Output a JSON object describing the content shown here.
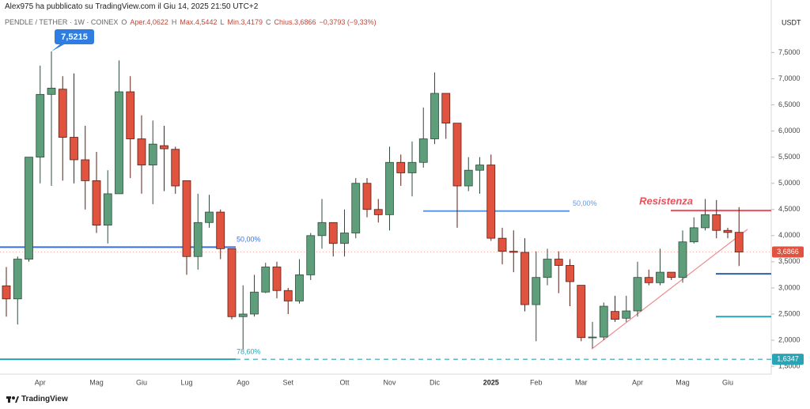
{
  "header": {
    "publisher": "Alex975 ha pubblicato su TradingView.com il Giu 14, 2025 21:50 UTC+2",
    "symbol": "PENDLE / TETHER · 1W · COINEX",
    "ohlc": [
      "O",
      "Aper.4,0622",
      "H",
      "Max.4,5442",
      "L",
      "Min.3,4179",
      "C",
      "Chius.3,6866",
      "−0,3793 (−9,33%)"
    ]
  },
  "logo": "TradingView",
  "chart_data": {
    "type": "candlestick",
    "y_axis_label": "USDT",
    "categories": [
      null,
      null,
      null,
      "Apr",
      null,
      null,
      null,
      null,
      "Mag",
      null,
      null,
      null,
      "Giu",
      null,
      null,
      null,
      "Lug",
      null,
      null,
      null,
      null,
      "Ago",
      null,
      null,
      null,
      "Set",
      null,
      null,
      null,
      null,
      "Ott",
      null,
      null,
      null,
      "Nov",
      null,
      null,
      null,
      "Dic",
      null,
      null,
      null,
      null,
      "2025",
      null,
      null,
      null,
      "Feb",
      null,
      null,
      null,
      "Mar",
      null,
      null,
      null,
      null,
      "Apr",
      null,
      null,
      null,
      "Mag",
      null,
      null,
      null,
      "Giu",
      null
    ],
    "open": [
      3.04,
      2.79,
      3.55,
      5.5,
      6.7,
      6.8,
      5.88,
      5.45,
      5.05,
      4.2,
      4.8,
      6.75,
      5.85,
      5.35,
      5.72,
      5.65,
      5.05,
      3.6,
      4.25,
      4.45,
      3.75,
      2.45,
      2.5,
      2.92,
      3.4,
      2.95,
      2.75,
      3.25,
      4.0,
      4.25,
      3.85,
      4.05,
      5.0,
      4.5,
      4.4,
      5.4,
      5.2,
      5.4,
      5.85,
      6.72,
      6.15,
      4.95,
      5.25,
      5.35,
      3.95,
      3.7,
      3.68,
      2.68,
      3.2,
      3.55,
      3.43,
      3.05,
      2.05,
      2.06,
      2.55,
      2.42,
      2.56,
      3.2,
      3.1,
      3.3,
      3.2,
      3.88,
      4.15,
      4.4,
      4.1,
      4.0622
    ],
    "high": [
      3.4,
      3.6,
      5.5,
      7.25,
      7.5215,
      7.05,
      7.1,
      6.1,
      5.6,
      5.25,
      7.35,
      7.05,
      6.3,
      6.2,
      6.1,
      5.7,
      5.05,
      4.8,
      4.78,
      4.5,
      3.75,
      3.05,
      3.25,
      3.48,
      3.5,
      3.0,
      3.55,
      4.05,
      4.7,
      4.25,
      4.5,
      5.1,
      5.1,
      4.7,
      5.7,
      5.55,
      5.8,
      6.45,
      7.12,
      6.72,
      6.15,
      5.5,
      5.5,
      5.55,
      4.15,
      4.1,
      3.95,
      3.7,
      3.75,
      3.7,
      3.55,
      3.05,
      2.35,
      2.72,
      2.85,
      2.85,
      3.5,
      3.35,
      3.75,
      3.3,
      4.1,
      4.35,
      4.7,
      4.68,
      4.15,
      4.5442
    ],
    "low": [
      2.45,
      2.3,
      3.5,
      5.0,
      4.95,
      5.05,
      5.0,
      4.5,
      4.05,
      3.85,
      4.8,
      5.1,
      4.8,
      4.6,
      4.85,
      4.8,
      3.25,
      3.35,
      4.15,
      3.55,
      2.4,
      1.83,
      2.45,
      2.9,
      2.8,
      2.5,
      2.7,
      3.15,
      3.75,
      3.6,
      3.6,
      3.95,
      4.35,
      4.25,
      4.1,
      4.95,
      4.75,
      5.3,
      5.75,
      5.85,
      4.15,
      4.85,
      4.8,
      3.9,
      3.45,
      3.3,
      2.55,
      1.98,
      3.05,
      2.9,
      2.65,
      1.98,
      1.85,
      2.0,
      2.35,
      2.35,
      2.45,
      3.05,
      3.05,
      3.15,
      3.1,
      3.85,
      4.1,
      3.95,
      3.95,
      3.4179
    ],
    "close": [
      2.79,
      3.55,
      5.5,
      6.7,
      6.82,
      5.88,
      5.45,
      5.05,
      4.2,
      4.8,
      6.75,
      5.85,
      5.35,
      5.75,
      5.66,
      4.95,
      3.6,
      4.25,
      4.45,
      3.75,
      2.45,
      2.5,
      2.92,
      3.4,
      2.95,
      2.75,
      3.25,
      4.0,
      4.25,
      3.85,
      4.05,
      5.0,
      4.5,
      4.4,
      5.4,
      5.2,
      5.4,
      5.85,
      6.72,
      6.15,
      4.95,
      5.25,
      5.35,
      3.95,
      3.7,
      3.68,
      2.68,
      3.2,
      3.55,
      3.43,
      3.12,
      2.05,
      2.06,
      2.65,
      2.4,
      2.56,
      3.2,
      3.1,
      3.3,
      3.2,
      3.88,
      4.15,
      4.4,
      4.1,
      4.06,
      3.6866
    ],
    "up_color": "#5f9e7a",
    "down_color": "#e0533f",
    "ylim": [
      1.35,
      7.9
    ],
    "yticks": [
      {
        "value": 1.5,
        "label": "1,5000"
      },
      {
        "value": 2,
        "label": "2,0000"
      },
      {
        "value": 2.5,
        "label": "2,5000"
      },
      {
        "value": 3,
        "label": "3,0000"
      },
      {
        "value": 3.5,
        "label": "3,5000"
      },
      {
        "value": 4,
        "label": "4,0000"
      },
      {
        "value": 4.5,
        "label": "4,5000"
      },
      {
        "value": 5,
        "label": "5,0000"
      },
      {
        "value": 5.5,
        "label": "5,5000"
      },
      {
        "value": 6,
        "label": "6,0000"
      },
      {
        "value": 6.5,
        "label": "6,5000"
      },
      {
        "value": 7,
        "label": "7,0000"
      },
      {
        "value": 7.5,
        "label": "7,5000"
      }
    ],
    "grid": false,
    "levels": [
      {
        "value": 3.78,
        "label": "50,00%",
        "color": "#3a6fd8"
      },
      {
        "value": 4.47,
        "label": "50,00%",
        "color": "#5b9be6"
      },
      {
        "value": 1.6347,
        "label": "78,60%",
        "color": "#2aa3b5"
      },
      {
        "value": 4.48,
        "label": "Resistenza",
        "color": "#e8505b"
      },
      {
        "value": 3.27,
        "color": "#2f5fa8"
      },
      {
        "value": 2.45,
        "color": "#2aa3b5"
      }
    ],
    "trendline": {
      "values": [
        1.83,
        4.12
      ],
      "color": "#ef8a8f"
    },
    "high_label": {
      "value": 7.5215,
      "label": "7,5215",
      "color": "#2f7de1"
    },
    "price_labels": [
      {
        "value": 3.6866,
        "label": "3,6866",
        "color": "#e0533f"
      },
      {
        "value": 1.6347,
        "label": "1,6347",
        "color": "#2aa3b5"
      }
    ]
  }
}
